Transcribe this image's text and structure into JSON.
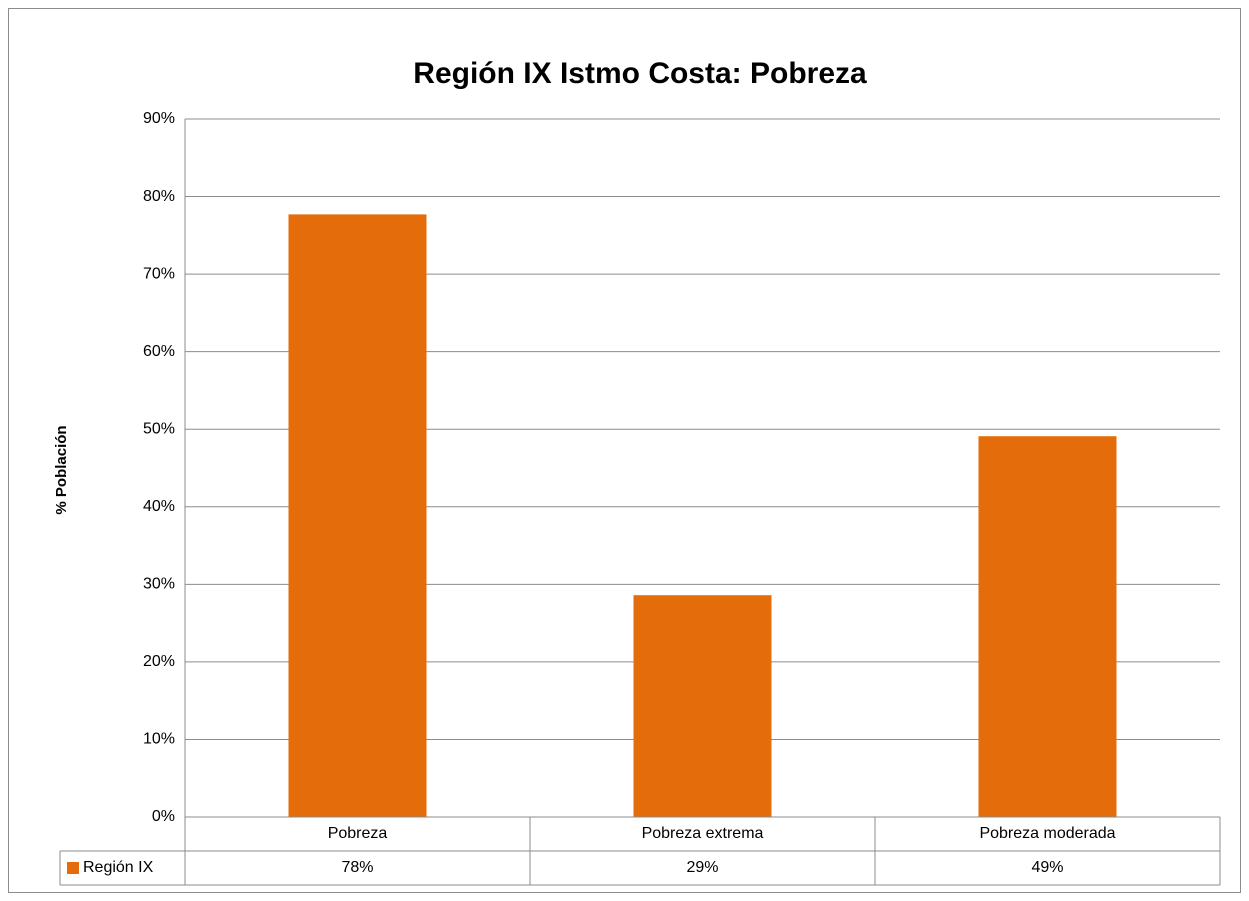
{
  "chart_data": {
    "type": "bar",
    "title": "Región IX Istmo Costa: Pobreza",
    "y_label": "% Población",
    "categories": [
      "Pobreza",
      "Pobreza extrema",
      "Pobreza moderada"
    ],
    "series": [
      {
        "name": "Región IX",
        "color": "#e46c0a",
        "values": [
          77.7,
          28.6,
          49.1
        ],
        "value_labels": [
          "78%",
          "29%",
          "49%"
        ]
      }
    ],
    "ylim": [
      0,
      90
    ],
    "yticks": [
      {
        "value": 0,
        "label": "0%"
      },
      {
        "value": 10,
        "label": "10%"
      },
      {
        "value": 20,
        "label": "20%"
      },
      {
        "value": 30,
        "label": "30%"
      },
      {
        "value": 40,
        "label": "40%"
      },
      {
        "value": 50,
        "label": "50%"
      },
      {
        "value": 60,
        "label": "60%"
      },
      {
        "value": 70,
        "label": "70%"
      },
      {
        "value": 80,
        "label": "80%"
      },
      {
        "value": 90,
        "label": "90%"
      }
    ],
    "grid": true
  }
}
